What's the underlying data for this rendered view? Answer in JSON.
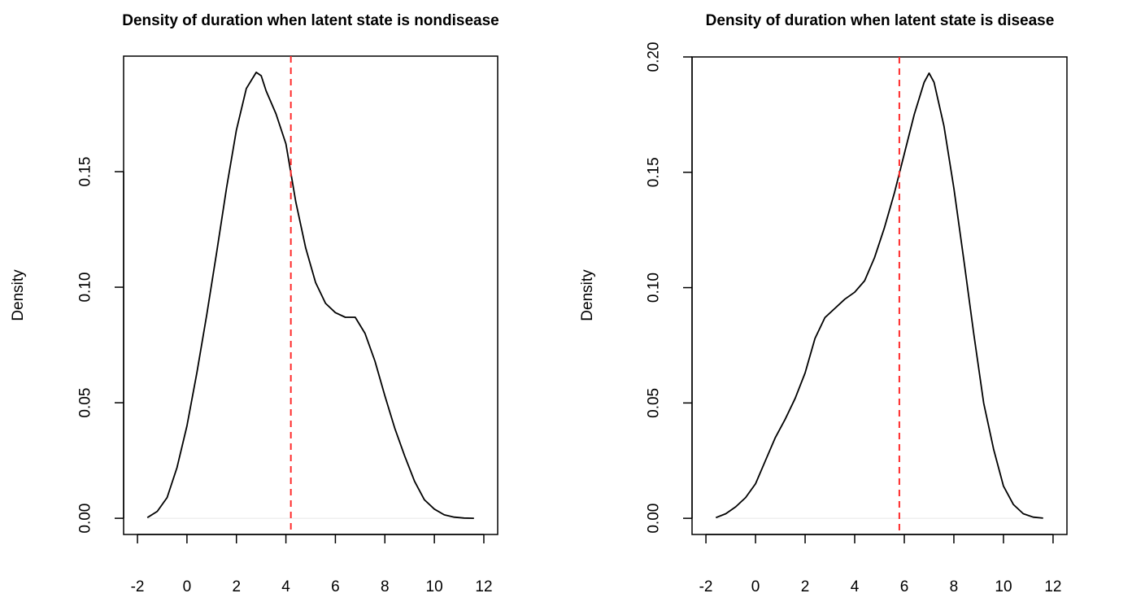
{
  "chart_data": [
    {
      "type": "line",
      "title": "Density of duration when latent state is nondisease",
      "xlabel": "",
      "ylabel": "Density",
      "xlim": [
        -2,
        12
      ],
      "ylim": [
        -0.007,
        0.2
      ],
      "x_ticks": [
        -2,
        0,
        2,
        4,
        6,
        8,
        10,
        12
      ],
      "y_ticks": [
        0.0,
        0.05,
        0.1,
        0.15
      ],
      "y_tick_labels": [
        "0.00",
        "0.05",
        "0.10",
        "0.15"
      ],
      "vline": 4.2,
      "vline_color": "#ff2a2a",
      "series": [
        {
          "x": [
            -1.6,
            -1.2,
            -0.8,
            -0.4,
            0.0,
            0.4,
            0.8,
            1.2,
            1.6,
            2.0,
            2.4,
            2.8,
            3.0,
            3.2,
            3.6,
            4.0,
            4.4,
            4.8,
            5.2,
            5.6,
            6.0,
            6.4,
            6.8,
            7.2,
            7.6,
            8.0,
            8.4,
            8.8,
            9.2,
            9.6,
            10.0,
            10.4,
            10.8,
            11.2,
            11.6
          ],
          "y": [
            0.0003,
            0.003,
            0.009,
            0.022,
            0.04,
            0.063,
            0.088,
            0.115,
            0.143,
            0.168,
            0.186,
            0.193,
            0.1915,
            0.185,
            0.175,
            0.162,
            0.137,
            0.117,
            0.102,
            0.093,
            0.089,
            0.087,
            0.087,
            0.08,
            0.068,
            0.053,
            0.039,
            0.027,
            0.016,
            0.008,
            0.004,
            0.0015,
            0.0005,
            0.0001,
            0.0
          ]
        }
      ]
    },
    {
      "type": "line",
      "title": "Density of duration when latent state is disease",
      "xlabel": "",
      "ylabel": "Density",
      "xlim": [
        -2,
        12
      ],
      "ylim": [
        -0.007,
        0.2
      ],
      "x_ticks": [
        -2,
        0,
        2,
        4,
        6,
        8,
        10,
        12
      ],
      "y_ticks": [
        0.0,
        0.05,
        0.1,
        0.15,
        0.2
      ],
      "y_tick_labels": [
        "0.00",
        "0.05",
        "0.10",
        "0.15",
        "0.20"
      ],
      "vline": 5.8,
      "vline_color": "#ff2a2a",
      "series": [
        {
          "x": [
            -1.6,
            -1.2,
            -0.8,
            -0.4,
            0.0,
            0.4,
            0.8,
            1.2,
            1.6,
            2.0,
            2.4,
            2.8,
            3.2,
            3.6,
            4.0,
            4.4,
            4.8,
            5.2,
            5.6,
            6.0,
            6.4,
            6.8,
            7.0,
            7.2,
            7.6,
            8.0,
            8.4,
            8.8,
            9.2,
            9.6,
            10.0,
            10.4,
            10.8,
            11.2,
            11.6
          ],
          "y": [
            0.0003,
            0.002,
            0.005,
            0.009,
            0.015,
            0.025,
            0.035,
            0.043,
            0.052,
            0.063,
            0.078,
            0.087,
            0.091,
            0.095,
            0.098,
            0.103,
            0.113,
            0.126,
            0.141,
            0.158,
            0.175,
            0.189,
            0.193,
            0.189,
            0.17,
            0.143,
            0.112,
            0.08,
            0.05,
            0.03,
            0.014,
            0.006,
            0.002,
            0.0005,
            0.0001
          ]
        }
      ]
    }
  ]
}
